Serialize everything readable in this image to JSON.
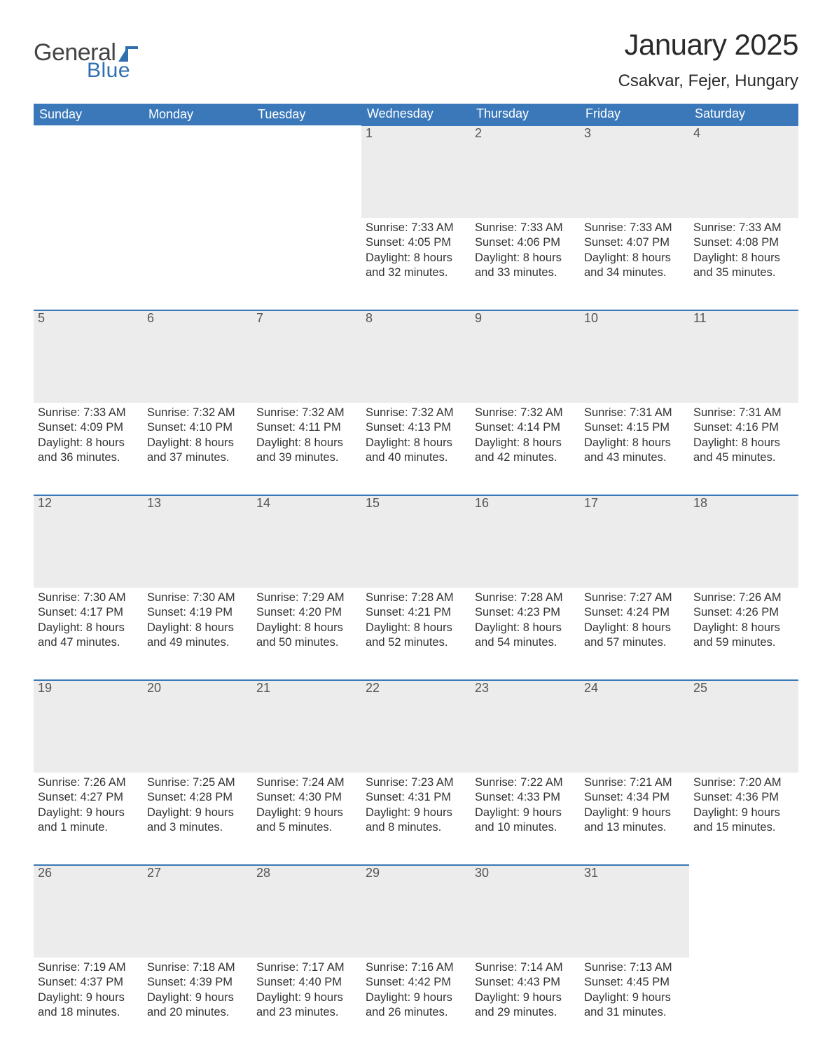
{
  "logo": {
    "word1": "General",
    "word2": "Blue"
  },
  "title": "January 2025",
  "location": "Csakvar, Fejer, Hungary",
  "colors": {
    "header_bg": "#3a78b9",
    "header_text": "#ffffff",
    "daynum_bg": "#ececec",
    "daynum_border": "#3a78b9",
    "body_text": "#333333",
    "logo_gray": "#444444",
    "logo_blue": "#2f6fb0",
    "page_bg": "#ffffff"
  },
  "fonts": {
    "title_size_pt": 32,
    "location_size_pt": 18,
    "header_size_pt": 14,
    "body_size_pt": 12
  },
  "weekdays": [
    "Sunday",
    "Monday",
    "Tuesday",
    "Wednesday",
    "Thursday",
    "Friday",
    "Saturday"
  ],
  "weeks": [
    [
      {
        "n": "",
        "sunrise": "",
        "sunset": "",
        "daylight1": "",
        "daylight2": ""
      },
      {
        "n": "",
        "sunrise": "",
        "sunset": "",
        "daylight1": "",
        "daylight2": ""
      },
      {
        "n": "",
        "sunrise": "",
        "sunset": "",
        "daylight1": "",
        "daylight2": ""
      },
      {
        "n": "1",
        "sunrise": "Sunrise: 7:33 AM",
        "sunset": "Sunset: 4:05 PM",
        "daylight1": "Daylight: 8 hours",
        "daylight2": "and 32 minutes."
      },
      {
        "n": "2",
        "sunrise": "Sunrise: 7:33 AM",
        "sunset": "Sunset: 4:06 PM",
        "daylight1": "Daylight: 8 hours",
        "daylight2": "and 33 minutes."
      },
      {
        "n": "3",
        "sunrise": "Sunrise: 7:33 AM",
        "sunset": "Sunset: 4:07 PM",
        "daylight1": "Daylight: 8 hours",
        "daylight2": "and 34 minutes."
      },
      {
        "n": "4",
        "sunrise": "Sunrise: 7:33 AM",
        "sunset": "Sunset: 4:08 PM",
        "daylight1": "Daylight: 8 hours",
        "daylight2": "and 35 minutes."
      }
    ],
    [
      {
        "n": "5",
        "sunrise": "Sunrise: 7:33 AM",
        "sunset": "Sunset: 4:09 PM",
        "daylight1": "Daylight: 8 hours",
        "daylight2": "and 36 minutes."
      },
      {
        "n": "6",
        "sunrise": "Sunrise: 7:32 AM",
        "sunset": "Sunset: 4:10 PM",
        "daylight1": "Daylight: 8 hours",
        "daylight2": "and 37 minutes."
      },
      {
        "n": "7",
        "sunrise": "Sunrise: 7:32 AM",
        "sunset": "Sunset: 4:11 PM",
        "daylight1": "Daylight: 8 hours",
        "daylight2": "and 39 minutes."
      },
      {
        "n": "8",
        "sunrise": "Sunrise: 7:32 AM",
        "sunset": "Sunset: 4:13 PM",
        "daylight1": "Daylight: 8 hours",
        "daylight2": "and 40 minutes."
      },
      {
        "n": "9",
        "sunrise": "Sunrise: 7:32 AM",
        "sunset": "Sunset: 4:14 PM",
        "daylight1": "Daylight: 8 hours",
        "daylight2": "and 42 minutes."
      },
      {
        "n": "10",
        "sunrise": "Sunrise: 7:31 AM",
        "sunset": "Sunset: 4:15 PM",
        "daylight1": "Daylight: 8 hours",
        "daylight2": "and 43 minutes."
      },
      {
        "n": "11",
        "sunrise": "Sunrise: 7:31 AM",
        "sunset": "Sunset: 4:16 PM",
        "daylight1": "Daylight: 8 hours",
        "daylight2": "and 45 minutes."
      }
    ],
    [
      {
        "n": "12",
        "sunrise": "Sunrise: 7:30 AM",
        "sunset": "Sunset: 4:17 PM",
        "daylight1": "Daylight: 8 hours",
        "daylight2": "and 47 minutes."
      },
      {
        "n": "13",
        "sunrise": "Sunrise: 7:30 AM",
        "sunset": "Sunset: 4:19 PM",
        "daylight1": "Daylight: 8 hours",
        "daylight2": "and 49 minutes."
      },
      {
        "n": "14",
        "sunrise": "Sunrise: 7:29 AM",
        "sunset": "Sunset: 4:20 PM",
        "daylight1": "Daylight: 8 hours",
        "daylight2": "and 50 minutes."
      },
      {
        "n": "15",
        "sunrise": "Sunrise: 7:28 AM",
        "sunset": "Sunset: 4:21 PM",
        "daylight1": "Daylight: 8 hours",
        "daylight2": "and 52 minutes."
      },
      {
        "n": "16",
        "sunrise": "Sunrise: 7:28 AM",
        "sunset": "Sunset: 4:23 PM",
        "daylight1": "Daylight: 8 hours",
        "daylight2": "and 54 minutes."
      },
      {
        "n": "17",
        "sunrise": "Sunrise: 7:27 AM",
        "sunset": "Sunset: 4:24 PM",
        "daylight1": "Daylight: 8 hours",
        "daylight2": "and 57 minutes."
      },
      {
        "n": "18",
        "sunrise": "Sunrise: 7:26 AM",
        "sunset": "Sunset: 4:26 PM",
        "daylight1": "Daylight: 8 hours",
        "daylight2": "and 59 minutes."
      }
    ],
    [
      {
        "n": "19",
        "sunrise": "Sunrise: 7:26 AM",
        "sunset": "Sunset: 4:27 PM",
        "daylight1": "Daylight: 9 hours",
        "daylight2": "and 1 minute."
      },
      {
        "n": "20",
        "sunrise": "Sunrise: 7:25 AM",
        "sunset": "Sunset: 4:28 PM",
        "daylight1": "Daylight: 9 hours",
        "daylight2": "and 3 minutes."
      },
      {
        "n": "21",
        "sunrise": "Sunrise: 7:24 AM",
        "sunset": "Sunset: 4:30 PM",
        "daylight1": "Daylight: 9 hours",
        "daylight2": "and 5 minutes."
      },
      {
        "n": "22",
        "sunrise": "Sunrise: 7:23 AM",
        "sunset": "Sunset: 4:31 PM",
        "daylight1": "Daylight: 9 hours",
        "daylight2": "and 8 minutes."
      },
      {
        "n": "23",
        "sunrise": "Sunrise: 7:22 AM",
        "sunset": "Sunset: 4:33 PM",
        "daylight1": "Daylight: 9 hours",
        "daylight2": "and 10 minutes."
      },
      {
        "n": "24",
        "sunrise": "Sunrise: 7:21 AM",
        "sunset": "Sunset: 4:34 PM",
        "daylight1": "Daylight: 9 hours",
        "daylight2": "and 13 minutes."
      },
      {
        "n": "25",
        "sunrise": "Sunrise: 7:20 AM",
        "sunset": "Sunset: 4:36 PM",
        "daylight1": "Daylight: 9 hours",
        "daylight2": "and 15 minutes."
      }
    ],
    [
      {
        "n": "26",
        "sunrise": "Sunrise: 7:19 AM",
        "sunset": "Sunset: 4:37 PM",
        "daylight1": "Daylight: 9 hours",
        "daylight2": "and 18 minutes."
      },
      {
        "n": "27",
        "sunrise": "Sunrise: 7:18 AM",
        "sunset": "Sunset: 4:39 PM",
        "daylight1": "Daylight: 9 hours",
        "daylight2": "and 20 minutes."
      },
      {
        "n": "28",
        "sunrise": "Sunrise: 7:17 AM",
        "sunset": "Sunset: 4:40 PM",
        "daylight1": "Daylight: 9 hours",
        "daylight2": "and 23 minutes."
      },
      {
        "n": "29",
        "sunrise": "Sunrise: 7:16 AM",
        "sunset": "Sunset: 4:42 PM",
        "daylight1": "Daylight: 9 hours",
        "daylight2": "and 26 minutes."
      },
      {
        "n": "30",
        "sunrise": "Sunrise: 7:14 AM",
        "sunset": "Sunset: 4:43 PM",
        "daylight1": "Daylight: 9 hours",
        "daylight2": "and 29 minutes."
      },
      {
        "n": "31",
        "sunrise": "Sunrise: 7:13 AM",
        "sunset": "Sunset: 4:45 PM",
        "daylight1": "Daylight: 9 hours",
        "daylight2": "and 31 minutes."
      },
      {
        "n": "",
        "sunrise": "",
        "sunset": "",
        "daylight1": "",
        "daylight2": ""
      }
    ]
  ]
}
